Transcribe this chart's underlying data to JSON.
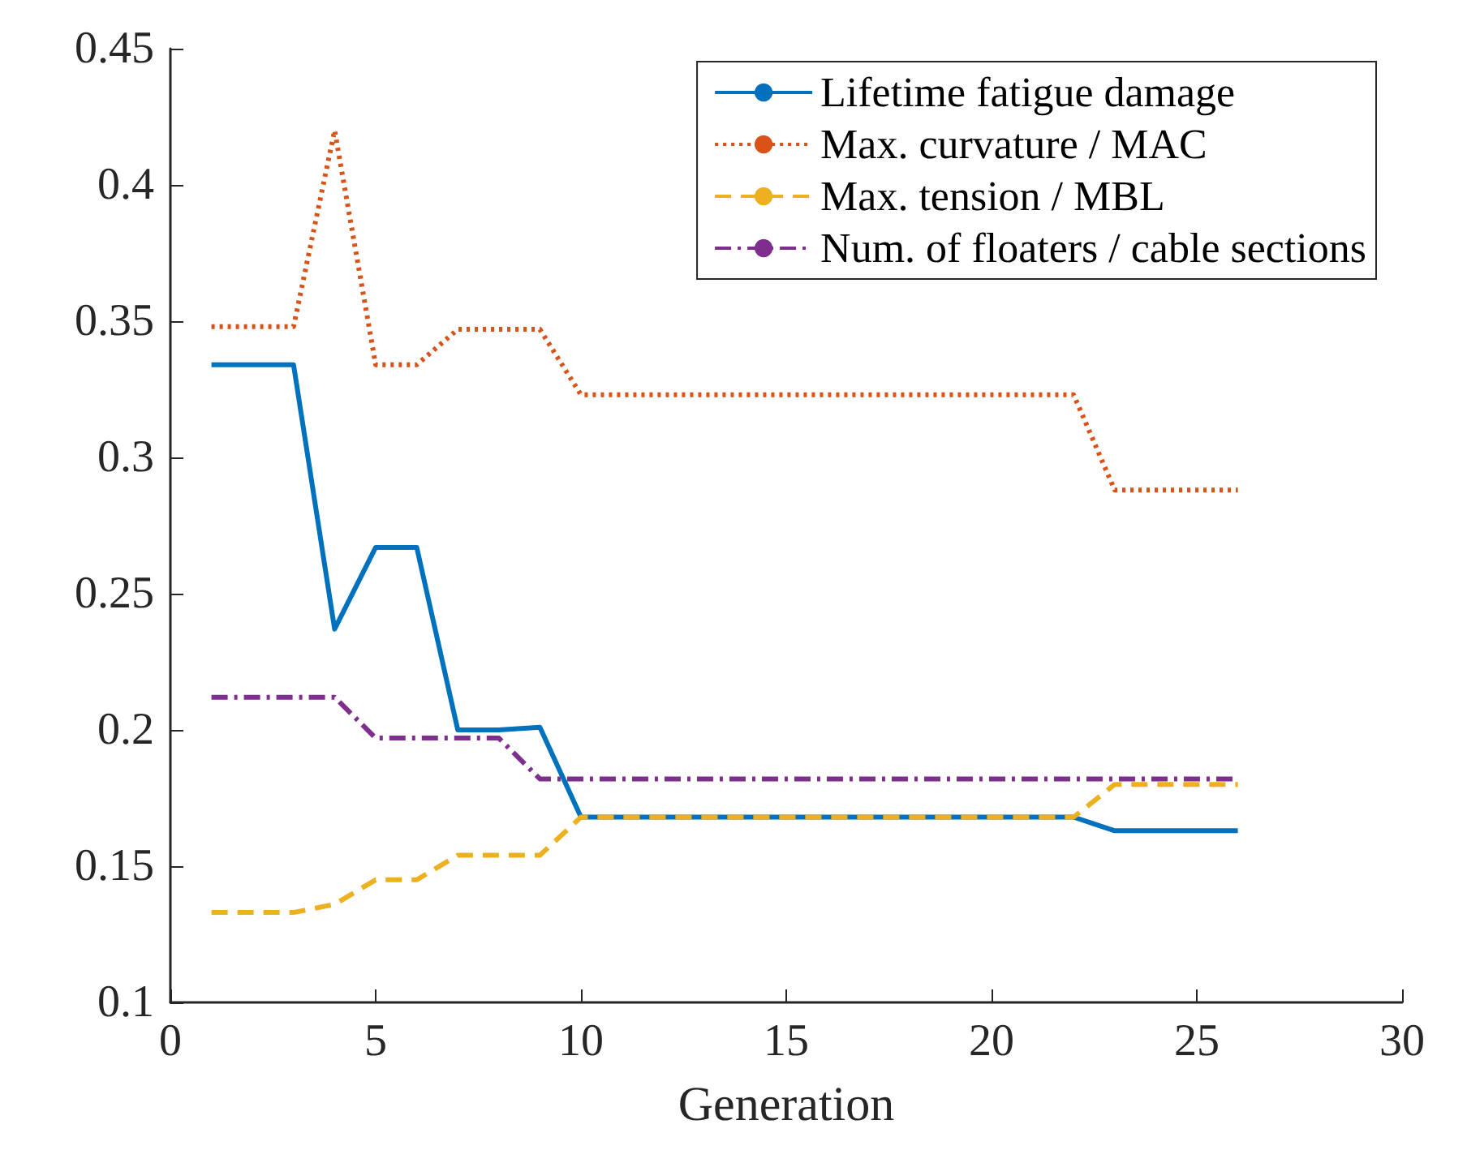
{
  "chart_data": {
    "type": "line",
    "xlabel": "Generation",
    "x": [
      1,
      2,
      3,
      4,
      5,
      6,
      7,
      8,
      9,
      10,
      11,
      12,
      13,
      14,
      15,
      16,
      17,
      18,
      19,
      20,
      21,
      22,
      23,
      24,
      25,
      26
    ],
    "xlim": [
      0,
      30
    ],
    "xticks": [
      0,
      5,
      10,
      15,
      20,
      25,
      30
    ],
    "ylim": [
      0.1,
      0.45
    ],
    "yticks": [
      0.1,
      0.15,
      0.2,
      0.25,
      0.3,
      0.35,
      0.4,
      0.45
    ],
    "grid": false,
    "legend": "top right",
    "marker": "none",
    "series": [
      {
        "name": "Lifetime fatigue damage",
        "color": "#0072bd",
        "line_style": "solid",
        "values": [
          0.334,
          0.334,
          0.334,
          0.237,
          0.267,
          0.267,
          0.2,
          0.2,
          0.201,
          0.168,
          0.168,
          0.168,
          0.168,
          0.168,
          0.168,
          0.168,
          0.168,
          0.168,
          0.168,
          0.168,
          0.168,
          0.168,
          0.163,
          0.163,
          0.163,
          0.163
        ]
      },
      {
        "name": "Max. curvature / MAC",
        "color": "#d95319",
        "line_style": "dotted",
        "values": [
          0.348,
          0.348,
          0.348,
          0.42,
          0.334,
          0.334,
          0.347,
          0.347,
          0.347,
          0.323,
          0.323,
          0.323,
          0.323,
          0.323,
          0.323,
          0.323,
          0.323,
          0.323,
          0.323,
          0.323,
          0.323,
          0.323,
          0.288,
          0.288,
          0.288,
          0.288
        ]
      },
      {
        "name": "Max. tension / MBL",
        "color": "#edb120",
        "line_style": "dashed",
        "values": [
          0.133,
          0.133,
          0.133,
          0.136,
          0.145,
          0.145,
          0.154,
          0.154,
          0.154,
          0.168,
          0.168,
          0.168,
          0.168,
          0.168,
          0.168,
          0.168,
          0.168,
          0.168,
          0.168,
          0.168,
          0.168,
          0.168,
          0.18,
          0.18,
          0.18,
          0.18
        ]
      },
      {
        "name": "Num. of floaters / cable sections",
        "color": "#7e2f8e",
        "line_style": "dashdot",
        "values": [
          0.212,
          0.212,
          0.212,
          0.212,
          0.197,
          0.197,
          0.197,
          0.197,
          0.182,
          0.182,
          0.182,
          0.182,
          0.182,
          0.182,
          0.182,
          0.182,
          0.182,
          0.182,
          0.182,
          0.182,
          0.182,
          0.182,
          0.182,
          0.182,
          0.182,
          0.182
        ]
      }
    ]
  }
}
